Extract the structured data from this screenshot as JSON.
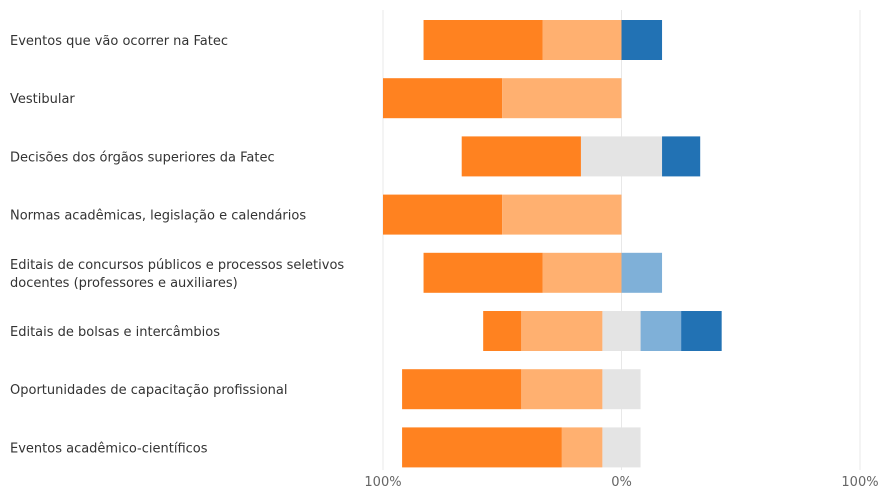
{
  "chart_data": {
    "type": "bar",
    "orientation": "horizontal",
    "stacked": "diverging",
    "categories": [
      [
        "Eventos que vão ocorrer na Fatec"
      ],
      [
        "Vestibular"
      ],
      [
        "Decisões dos órgãos superiores da Fatec"
      ],
      [
        "Normas acadêmicas, legislação e calendários"
      ],
      [
        "Editais de concursos públicos e processos seletivos",
        "docentes (professores e auxiliares)"
      ],
      [
        "Editais de bolsas e intercâmbios"
      ],
      [
        "Oportunidades de capacitação profissional"
      ],
      [
        "Eventos acadêmico-científicos"
      ]
    ],
    "segment_colors": [
      "#ff8220",
      "#ffb070",
      "#e4e4e4",
      "#7fb0d8",
      "#2272b4"
    ],
    "series": [
      {
        "values": [
          50,
          50,
          0,
          0,
          0,
          0,
          17,
          17
        ]
      },
      {
        "values": [
          33,
          50,
          0,
          50,
          33,
          33,
          33,
          17
        ]
      },
      {
        "values": [
          0,
          0,
          -17,
          0,
          0,
          -17,
          -17,
          -17
        ]
      },
      {
        "values": [
          0,
          0,
          -33,
          0,
          0,
          -17,
          0,
          0
        ]
      },
      {
        "values": [
          0,
          0,
          0,
          0,
          17,
          -17,
          0,
          0
        ]
      },
      {
        "values": [
          0,
          0,
          0,
          0,
          0,
          0,
          0,
          0
        ]
      },
      {
        "values": [
          0,
          0,
          0,
          0,
          0,
          0,
          0,
          0
        ]
      },
      {
        "values": [
          0,
          0,
          0,
          0,
          0,
          0,
          0,
          0
        ]
      }
    ],
    "segments": [
      [
        {
          "from": -83,
          "to": -33,
          "color": "#ff8220"
        },
        {
          "from": -33,
          "to": 0,
          "color": "#ffb070"
        },
        {
          "from": 0,
          "to": 17,
          "color": "#2272b4"
        }
      ],
      [
        {
          "from": -100,
          "to": -50,
          "color": "#ff8220"
        },
        {
          "from": -50,
          "to": 0,
          "color": "#ffb070"
        }
      ],
      [
        {
          "from": -67,
          "to": -17,
          "color": "#ff8220"
        },
        {
          "from": -17,
          "to": 17,
          "color": "#e4e4e4"
        },
        {
          "from": 17,
          "to": 33,
          "color": "#2272b4"
        }
      ],
      [
        {
          "from": -100,
          "to": -50,
          "color": "#ff8220"
        },
        {
          "from": -50,
          "to": 0,
          "color": "#ffb070"
        }
      ],
      [
        {
          "from": -83,
          "to": -33,
          "color": "#ff8220"
        },
        {
          "from": -33,
          "to": 0,
          "color": "#ffb070"
        },
        {
          "from": 0,
          "to": 17,
          "color": "#7fb0d8"
        }
      ],
      [
        {
          "from": -58,
          "to": -42,
          "color": "#ff8220"
        },
        {
          "from": -42,
          "to": -8,
          "color": "#ffb070"
        },
        {
          "from": -8,
          "to": 8,
          "color": "#e4e4e4"
        },
        {
          "from": 8,
          "to": 25,
          "color": "#7fb0d8"
        },
        {
          "from": 25,
          "to": 42,
          "color": "#2272b4"
        }
      ],
      [
        {
          "from": -92,
          "to": -42,
          "color": "#ff8220"
        },
        {
          "from": -42,
          "to": -8,
          "color": "#ffb070"
        },
        {
          "from": -8,
          "to": 8,
          "color": "#e4e4e4"
        }
      ],
      [
        {
          "from": -92,
          "to": -25,
          "color": "#ff8220"
        },
        {
          "from": -25,
          "to": -8,
          "color": "#ffb070"
        },
        {
          "from": -8,
          "to": 8,
          "color": "#e4e4e4"
        }
      ]
    ],
    "xlim": [
      -100,
      100
    ],
    "x_ticks": [
      {
        "value": -100,
        "label": "100%"
      },
      {
        "value": 0,
        "label": "0%"
      },
      {
        "value": 100,
        "label": "100%"
      }
    ],
    "grid": true,
    "title": "",
    "xlabel": "",
    "ylabel": ""
  }
}
